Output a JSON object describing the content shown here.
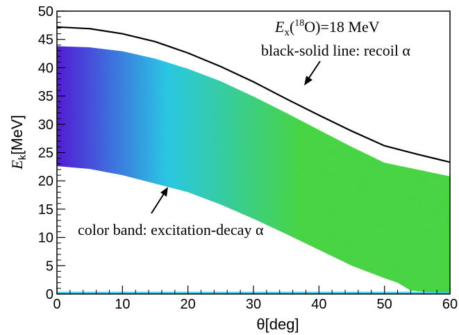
{
  "chart_data": {
    "type": "scatter",
    "xlabel": "θ[deg]",
    "ylabel": {
      "main": "E",
      "sub": "k",
      "rest": "[MeV]"
    },
    "xlim": [
      0,
      60
    ],
    "ylim": [
      0,
      50
    ],
    "xticks": [
      0,
      10,
      20,
      30,
      40,
      50,
      60
    ],
    "yticks": [
      0,
      5,
      10,
      15,
      20,
      25,
      30,
      35,
      40,
      45,
      50
    ],
    "grid": false,
    "legend": "none",
    "annotations": {
      "excitation": {
        "E": "E",
        "x": "x",
        "open": "(",
        "mass": "18",
        "element": "O)=18 MeV"
      },
      "recoil_label": "black-solid line: recoil α",
      "band_label": "color band: excitation-decay α"
    },
    "recoil_line": {
      "x": [
        0,
        5,
        10,
        15,
        20,
        25,
        30,
        35,
        40,
        45,
        50,
        55,
        60
      ],
      "y": [
        47.2,
        46.9,
        46.0,
        44.6,
        42.6,
        40.2,
        37.5,
        34.5,
        31.6,
        28.8,
        26.2,
        24.7,
        23.3
      ]
    },
    "band_upper": {
      "x": [
        0,
        5,
        10,
        15,
        20,
        25,
        30,
        35,
        40,
        45,
        50,
        55,
        60
      ],
      "y": [
        43.8,
        43.6,
        42.9,
        41.6,
        39.8,
        37.6,
        34.9,
        32.0,
        29.0,
        26.0,
        23.2,
        22.0,
        20.8
      ]
    },
    "band_lower": {
      "x": [
        0,
        5,
        10,
        15,
        20,
        25,
        30,
        35,
        40,
        45,
        50,
        52,
        54,
        57,
        60
      ],
      "y": [
        22.6,
        22.1,
        21.0,
        19.5,
        18.0,
        15.8,
        13.3,
        10.6,
        7.8,
        5.0,
        2.8,
        2.0,
        0.6,
        0.3,
        0.2
      ]
    },
    "floor_band": {
      "x": [
        0,
        60
      ],
      "y": [
        0,
        0.4
      ]
    },
    "colors": {
      "recoil": "#000000",
      "band_left": "#4a0fd8",
      "band_mid": "#1ec8e6",
      "band_right": "#3fd63a",
      "band_yellow": "#d9e64a"
    }
  }
}
